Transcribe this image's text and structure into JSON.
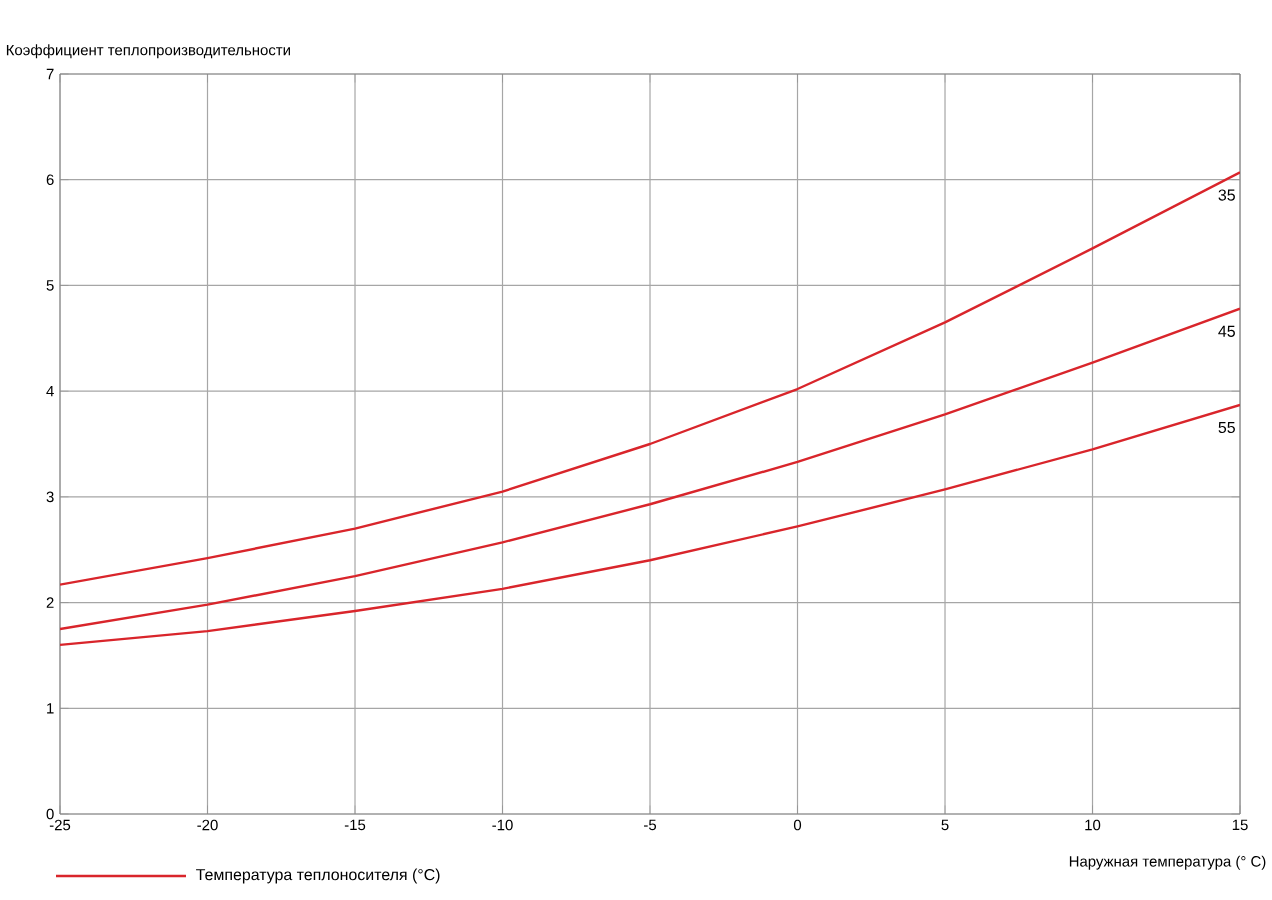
{
  "chart_data": {
    "type": "line",
    "ylabel": "Коэффициент теплопроизводительности",
    "xlabel": "Наружная температура (° С)",
    "legend_title": "Температура теплоносителя (°С)",
    "grid": true,
    "marker": "none",
    "line_style": "solid",
    "x": [
      -25,
      -20,
      -15,
      -10,
      -5,
      0,
      5,
      10,
      15
    ],
    "xlim": [
      -25,
      15
    ],
    "xticks": [
      -25,
      -20,
      -15,
      -10,
      -5,
      0,
      5,
      10,
      15
    ],
    "ylim": [
      0,
      7
    ],
    "yticks": [
      0,
      1,
      2,
      3,
      4,
      5,
      6,
      7
    ],
    "series": [
      {
        "name": "35",
        "color": "#d9252b",
        "values": [
          2.17,
          2.42,
          2.7,
          3.05,
          3.5,
          4.02,
          4.65,
          5.35,
          6.07
        ]
      },
      {
        "name": "45",
        "color": "#d9252b",
        "values": [
          1.75,
          1.98,
          2.25,
          2.57,
          2.93,
          3.33,
          3.78,
          4.27,
          4.78
        ]
      },
      {
        "name": "55",
        "color": "#d9252b",
        "values": [
          1.6,
          1.73,
          1.92,
          2.13,
          2.4,
          2.72,
          3.07,
          3.45,
          3.87
        ]
      }
    ]
  }
}
